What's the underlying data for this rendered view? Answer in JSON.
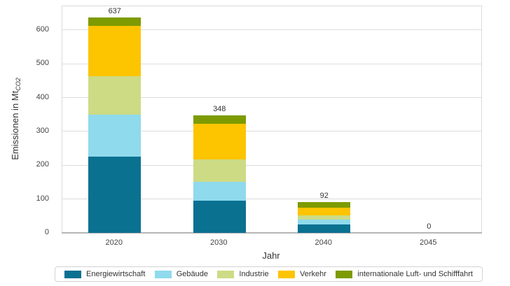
{
  "chart_data": {
    "type": "bar",
    "stacked": true,
    "title": "",
    "xlabel": "Jahr",
    "ylabel": {
      "text": "Emissionen in Mt",
      "subscript": "CO2"
    },
    "categories": [
      "2020",
      "2030",
      "2040",
      "2045"
    ],
    "series": [
      {
        "name": "Energiewirtschaft",
        "color": "#0A7191",
        "values": [
          225,
          95,
          25,
          0
        ]
      },
      {
        "name": "Gebäude",
        "color": "#8FDAEC",
        "values": [
          125,
          57,
          14,
          0
        ]
      },
      {
        "name": "Industrie",
        "color": "#CDDB85",
        "values": [
          113,
          65,
          12,
          0
        ]
      },
      {
        "name": "Verkehr",
        "color": "#FDC400",
        "values": [
          150,
          105,
          23,
          0
        ]
      },
      {
        "name": "internationale Luft- und Schifffahrt",
        "color": "#7D9B00",
        "values": [
          24,
          26,
          18,
          0
        ]
      }
    ],
    "totals": [
      "637",
      "348",
      "92",
      "0"
    ],
    "yticks": [
      0,
      100,
      200,
      300,
      400,
      500,
      600
    ],
    "ylim": [
      0,
      670
    ],
    "grid": true,
    "legend_position": "bottom",
    "axis_colors": {
      "gridline": "#dcdcdc",
      "baseline": "#b5b5b5",
      "frame": "#dadada"
    }
  }
}
